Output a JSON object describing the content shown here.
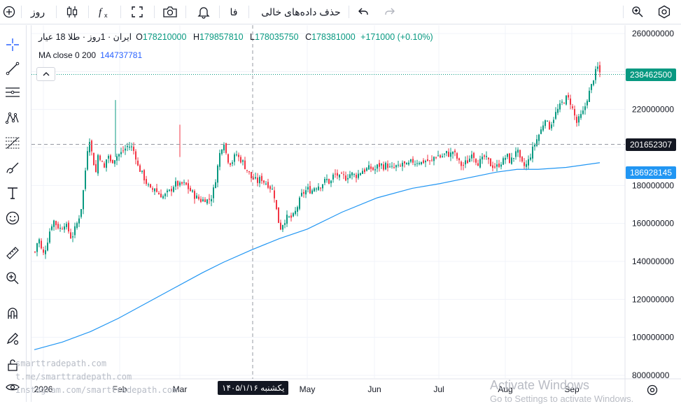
{
  "toolbar": {
    "interval": "روز",
    "lang": "فا",
    "remove_empty": "حذف داده‌های خالی",
    "colors": {
      "icon": "#131722",
      "disabled": "#b2b5be"
    }
  },
  "legend": {
    "symbol": "ایران · 1روز · طلا 18 عیار",
    "o_label": "O",
    "o_value": "178210000",
    "h_label": "H",
    "h_value": "179857810",
    "l_label": "L",
    "l_value": "178035750",
    "c_label": "C",
    "c_value": "178381000",
    "change": "+171000 (+0.10%)",
    "ma_label": "MA close 0 200",
    "ma_value": "144737781"
  },
  "price_tags": {
    "last": {
      "text": "238462500",
      "color": "#089981",
      "value": 238462500
    },
    "cross": {
      "text": "201652307",
      "color": "#131722",
      "value": 201652307
    },
    "ma": {
      "text": "186928145",
      "color": "#2196f3",
      "value": 186928145
    }
  },
  "crosshair_date": "یکشنبه ۱۴۰۵/۱/۱۶",
  "watermarks": [
    "smarttradepath.com",
    "t.me/smarttradepath.com",
    "instagram.com/smarttradepath.com"
  ],
  "windows_notice": {
    "title": "Activate Windows",
    "subtitle": "Go to Settings to activate Windows."
  },
  "chart_data": {
    "type": "candlestick",
    "y_axis": {
      "min": 80000000,
      "max": 260000000,
      "step": 20000000,
      "ticks": [
        "80000000",
        "100000000",
        "120000000",
        "140000000",
        "160000000",
        "180000000",
        "200000000",
        "220000000",
        "240000000",
        "260000000"
      ]
    },
    "x_labels": [
      "2026",
      "Feb",
      "Mar",
      "May",
      "Jun",
      "Jul",
      "Aug",
      "Sep"
    ],
    "grid": true,
    "colors": {
      "up": "#089981",
      "down": "#f23645",
      "ma": "#2196f3"
    },
    "close_path": [
      [
        0,
        145000000
      ],
      [
        5,
        153000000
      ],
      [
        11,
        143000000
      ],
      [
        16,
        148000000
      ],
      [
        21,
        156000000
      ],
      [
        26,
        162000000
      ],
      [
        31,
        159000000
      ],
      [
        37,
        157000000
      ],
      [
        42,
        160000000
      ],
      [
        47,
        157000000
      ],
      [
        52,
        152000000
      ],
      [
        57,
        157000000
      ],
      [
        62,
        162000000
      ],
      [
        67,
        170000000
      ],
      [
        72,
        188000000
      ],
      [
        77,
        207000000
      ],
      [
        82,
        195000000
      ],
      [
        87,
        187000000
      ],
      [
        91,
        199000000
      ],
      [
        94,
        193000000
      ],
      [
        99,
        189000000
      ],
      [
        104,
        197000000
      ],
      [
        108,
        192000000
      ],
      [
        113,
        194000000
      ],
      [
        118,
        196000000
      ],
      [
        123,
        197000000
      ],
      [
        128,
        199000000
      ],
      [
        133,
        201000000
      ],
      [
        138,
        200000000
      ],
      [
        143,
        197000000
      ],
      [
        147,
        190000000
      ],
      [
        152,
        187000000
      ],
      [
        157,
        183000000
      ],
      [
        161,
        180000000
      ],
      [
        166,
        177000000
      ],
      [
        171,
        179000000
      ],
      [
        175,
        176000000
      ],
      [
        180,
        175000000
      ],
      [
        184,
        174000000
      ],
      [
        189,
        176000000
      ],
      [
        193,
        177000000
      ],
      [
        198,
        180000000
      ],
      [
        202,
        181000000
      ],
      [
        207,
        180000000
      ],
      [
        211,
        181000000
      ],
      [
        216,
        180000000
      ],
      [
        220,
        178000000
      ],
      [
        225,
        176000000
      ],
      [
        229,
        174000000
      ],
      [
        234,
        173000000
      ],
      [
        238,
        172000000
      ],
      [
        243,
        173000000
      ],
      [
        247,
        172000000
      ],
      [
        252,
        174000000
      ],
      [
        256,
        179000000
      ],
      [
        261,
        190000000
      ],
      [
        265,
        199000000
      ],
      [
        270,
        203000000
      ],
      [
        274,
        195000000
      ],
      [
        278,
        192000000
      ],
      [
        283,
        193000000
      ],
      [
        287,
        197000000
      ],
      [
        292,
        194000000
      ],
      [
        296,
        193000000
      ],
      [
        300,
        190000000
      ],
      [
        305,
        187000000
      ],
      [
        309,
        184000000
      ],
      [
        314,
        183000000
      ],
      [
        318,
        182000000
      ],
      [
        323,
        184000000
      ],
      [
        327,
        182000000
      ],
      [
        332,
        181000000
      ],
      [
        336,
        179000000
      ],
      [
        341,
        177000000
      ],
      [
        345,
        167000000
      ],
      [
        350,
        157000000
      ],
      [
        354,
        160000000
      ],
      [
        359,
        163000000
      ],
      [
        363,
        163000000
      ],
      [
        368,
        163000000
      ],
      [
        372,
        166000000
      ],
      [
        377,
        171000000
      ],
      [
        381,
        175000000
      ],
      [
        386,
        177000000
      ],
      [
        390,
        178000000
      ],
      [
        395,
        177000000
      ],
      [
        399,
        179000000
      ],
      [
        404,
        180000000
      ],
      [
        408,
        180000000
      ],
      [
        413,
        182000000
      ],
      [
        417,
        183000000
      ],
      [
        422,
        181000000
      ],
      [
        426,
        185000000
      ],
      [
        431,
        186000000
      ],
      [
        435,
        184000000
      ],
      [
        440,
        185000000
      ],
      [
        444,
        184000000
      ],
      [
        449,
        186000000
      ],
      [
        453,
        186000000
      ],
      [
        458,
        185000000
      ],
      [
        462,
        186000000
      ],
      [
        467,
        188000000
      ],
      [
        471,
        188000000
      ],
      [
        476,
        189000000
      ],
      [
        480,
        189000000
      ],
      [
        485,
        188000000
      ],
      [
        489,
        190000000
      ],
      [
        494,
        191000000
      ],
      [
        498,
        190000000
      ],
      [
        503,
        191000000
      ],
      [
        507,
        189000000
      ],
      [
        512,
        189000000
      ],
      [
        516,
        190000000
      ],
      [
        521,
        189000000
      ],
      [
        525,
        192000000
      ],
      [
        530,
        190000000
      ],
      [
        534,
        191000000
      ],
      [
        539,
        193000000
      ],
      [
        543,
        192000000
      ],
      [
        548,
        193000000
      ],
      [
        552,
        192000000
      ],
      [
        557,
        193000000
      ],
      [
        561,
        193000000
      ],
      [
        566,
        192000000
      ],
      [
        570,
        195000000
      ],
      [
        575,
        196000000
      ],
      [
        579,
        195000000
      ],
      [
        584,
        196000000
      ],
      [
        588,
        197000000
      ],
      [
        593,
        196000000
      ],
      [
        597,
        198000000
      ],
      [
        602,
        195000000
      ],
      [
        606,
        192000000
      ],
      [
        611,
        190000000
      ],
      [
        615,
        192000000
      ],
      [
        620,
        193000000
      ],
      [
        624,
        198000000
      ],
      [
        629,
        194000000
      ],
      [
        633,
        192000000
      ],
      [
        638,
        193000000
      ],
      [
        642,
        195000000
      ],
      [
        647,
        193000000
      ],
      [
        651,
        191000000
      ],
      [
        656,
        190000000
      ],
      [
        660,
        190000000
      ],
      [
        665,
        192000000
      ],
      [
        669,
        193000000
      ],
      [
        674,
        196000000
      ],
      [
        678,
        193000000
      ],
      [
        683,
        194000000
      ],
      [
        688,
        200000000
      ],
      [
        693,
        193000000
      ],
      [
        698,
        190000000
      ],
      [
        703,
        191000000
      ],
      [
        708,
        196000000
      ],
      [
        713,
        201000000
      ],
      [
        719,
        206000000
      ],
      [
        724,
        210000000
      ],
      [
        729,
        216000000
      ],
      [
        734,
        210000000
      ],
      [
        739,
        214000000
      ],
      [
        744,
        218000000
      ],
      [
        749,
        221000000
      ],
      [
        754,
        224000000
      ],
      [
        759,
        226000000
      ],
      [
        764,
        225000000
      ],
      [
        769,
        219000000
      ],
      [
        774,
        213000000
      ],
      [
        779,
        216000000
      ],
      [
        784,
        219000000
      ],
      [
        789,
        226000000
      ],
      [
        794,
        231000000
      ],
      [
        799,
        238000000
      ],
      [
        804,
        242000000
      ],
      [
        808,
        238500000
      ]
    ],
    "ma_series": [
      [
        0,
        93500000
      ],
      [
        40,
        97500000
      ],
      [
        80,
        103000000
      ],
      [
        120,
        110000000
      ],
      [
        160,
        118000000
      ],
      [
        200,
        126000000
      ],
      [
        240,
        134000000
      ],
      [
        270,
        139500000
      ],
      [
        310,
        146000000
      ],
      [
        350,
        152000000
      ],
      [
        390,
        157000000
      ],
      [
        440,
        166000000
      ],
      [
        490,
        173500000
      ],
      [
        540,
        178500000
      ],
      [
        580,
        181000000
      ],
      [
        620,
        184000000
      ],
      [
        660,
        187000000
      ],
      [
        690,
        188500000
      ],
      [
        720,
        188500000
      ],
      [
        760,
        189500000
      ],
      [
        808,
        192000000
      ]
    ],
    "last_close": 238462500
  }
}
